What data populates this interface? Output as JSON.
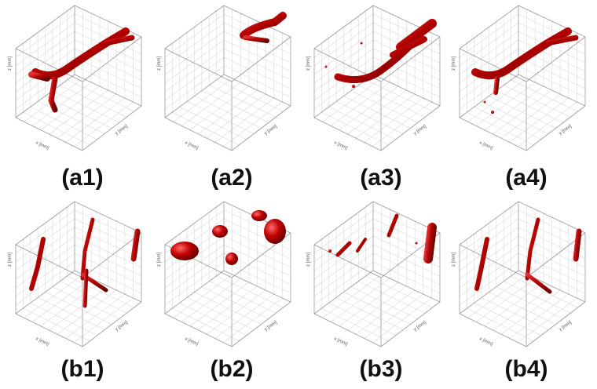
{
  "figure": {
    "panels": [
      {
        "label": "(a1)"
      },
      {
        "label": "(a2)"
      },
      {
        "label": "(a3)"
      },
      {
        "label": "(a4)"
      },
      {
        "label": "(b1)"
      },
      {
        "label": "(b2)"
      },
      {
        "label": "(b3)"
      },
      {
        "label": "(b4)"
      }
    ],
    "axis_labels": {
      "x": "x [mm]",
      "y": "y [mm]",
      "z": "z [mm]"
    }
  }
}
